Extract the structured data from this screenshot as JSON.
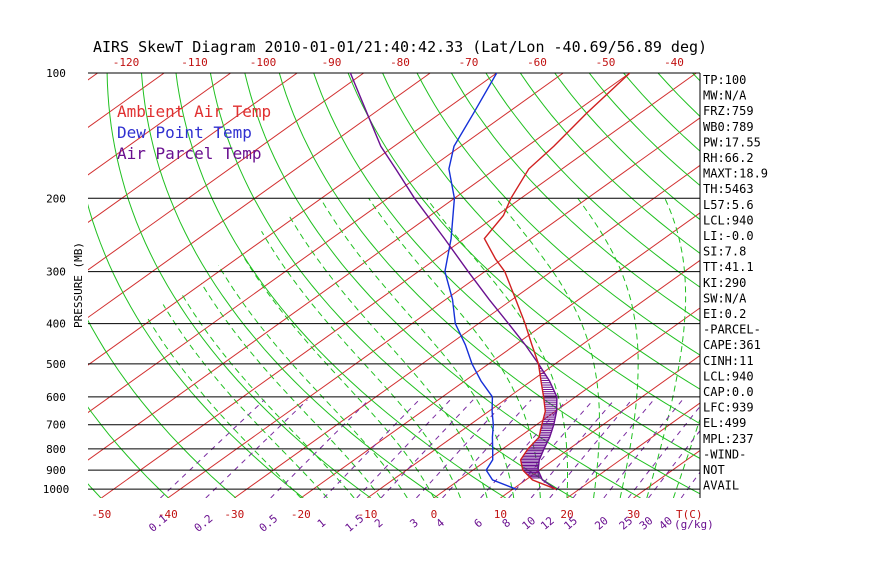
{
  "chart_data": {
    "type": "line",
    "title": "AIRS SkewT Diagram 2010-01-01/21:40:42.33 (Lat/Lon -40.69/56.89 deg)",
    "ylabel": "PRESSURE (MB)",
    "xlabel_top": "",
    "xlabel_bottom_temp_unit": "T(C)",
    "xlabel_bottom_mix_unit": "(g/kg)",
    "ylim": [
      1050,
      100
    ],
    "xlim": [
      -52,
      40
    ],
    "pressure_ticks": [
      100,
      200,
      300,
      400,
      500,
      600,
      700,
      800,
      900,
      1000
    ],
    "top_temp_ticks": [
      -120,
      -110,
      -100,
      -90,
      -80,
      -70,
      -60,
      -50,
      -40
    ],
    "bottom_temp_ticks": [
      -50,
      -40,
      -30,
      -20,
      -10,
      0,
      10,
      20,
      30
    ],
    "mixing_ratio_labels": [
      "0.1",
      "0.2",
      "0.5",
      "1",
      "1.5",
      "2",
      "3",
      "4",
      "6",
      "8",
      "10",
      "12",
      "15",
      "20",
      "25",
      "30",
      "40"
    ],
    "legend": [
      {
        "label": "Ambient Air Temp",
        "color": "#e03030"
      },
      {
        "label": "Dew Point Temp",
        "color": "#3030d0"
      },
      {
        "label": "Air Parcel Temp",
        "color": "#6a1090"
      }
    ],
    "series": [
      {
        "name": "Ambient Air Temp",
        "color": "#d02020",
        "points": [
          {
            "p": 1000,
            "t": 16.5
          },
          {
            "p": 950,
            "t": 11
          },
          {
            "p": 900,
            "t": 7.5
          },
          {
            "p": 850,
            "t": 5
          },
          {
            "p": 800,
            "t": 3.8
          },
          {
            "p": 750,
            "t": 3
          },
          {
            "p": 700,
            "t": 0.8
          },
          {
            "p": 650,
            "t": -1.5
          },
          {
            "p": 600,
            "t": -4.8
          },
          {
            "p": 550,
            "t": -8.5
          },
          {
            "p": 500,
            "t": -12.5
          },
          {
            "p": 450,
            "t": -17.5
          },
          {
            "p": 400,
            "t": -23
          },
          {
            "p": 350,
            "t": -29.5
          },
          {
            "p": 300,
            "t": -37
          },
          {
            "p": 280,
            "t": -41
          },
          {
            "p": 250,
            "t": -47
          },
          {
            "p": 220,
            "t": -49
          },
          {
            "p": 200,
            "t": -51.5
          },
          {
            "p": 170,
            "t": -55
          },
          {
            "p": 150,
            "t": -56
          },
          {
            "p": 125,
            "t": -58
          },
          {
            "p": 100,
            "t": -60
          }
        ]
      },
      {
        "name": "Dew Point Temp",
        "color": "#1530d8",
        "points": [
          {
            "p": 1000,
            "t": 10.5
          },
          {
            "p": 950,
            "t": 5
          },
          {
            "p": 900,
            "t": 2
          },
          {
            "p": 850,
            "t": 0.8
          },
          {
            "p": 800,
            "t": -1.5
          },
          {
            "p": 750,
            "t": -4
          },
          {
            "p": 700,
            "t": -6.5
          },
          {
            "p": 650,
            "t": -9.5
          },
          {
            "p": 600,
            "t": -12.5
          },
          {
            "p": 550,
            "t": -17.5
          },
          {
            "p": 500,
            "t": -22.5
          },
          {
            "p": 450,
            "t": -27.5
          },
          {
            "p": 400,
            "t": -33.5
          },
          {
            "p": 350,
            "t": -39
          },
          {
            "p": 300,
            "t": -46
          },
          {
            "p": 250,
            "t": -52
          },
          {
            "p": 200,
            "t": -60
          },
          {
            "p": 170,
            "t": -67
          },
          {
            "p": 150,
            "t": -71
          },
          {
            "p": 125,
            "t": -75
          },
          {
            "p": 100,
            "t": -80
          }
        ]
      },
      {
        "name": "Air Parcel Temp",
        "color": "#6a1090",
        "points": [
          {
            "p": 1000,
            "t": 16.5
          },
          {
            "p": 950,
            "t": 12.5
          },
          {
            "p": 900,
            "t": 9.8
          },
          {
            "p": 850,
            "t": 7.8
          },
          {
            "p": 800,
            "t": 6.2
          },
          {
            "p": 750,
            "t": 4.6
          },
          {
            "p": 700,
            "t": 2.6
          },
          {
            "p": 650,
            "t": 0.2
          },
          {
            "p": 600,
            "t": -2.8
          },
          {
            "p": 550,
            "t": -7.2
          },
          {
            "p": 500,
            "t": -12.5
          },
          {
            "p": 450,
            "t": -18.5
          },
          {
            "p": 400,
            "t": -25.5
          },
          {
            "p": 350,
            "t": -33.5
          },
          {
            "p": 300,
            "t": -42.5
          },
          {
            "p": 250,
            "t": -53
          },
          {
            "p": 200,
            "t": -66
          },
          {
            "p": 170,
            "t": -75
          },
          {
            "p": 150,
            "t": -82
          },
          {
            "p": 125,
            "t": -91
          },
          {
            "p": 100,
            "t": -102
          }
        ]
      }
    ],
    "cape_region": {
      "from_p": 940,
      "to_p": 499,
      "color": "#6a1090"
    },
    "index_panel": [
      "TP:100",
      "MW:N/A",
      "FRZ:759",
      "WB0:789",
      "PW:17.55",
      "RH:66.2",
      "MAXT:18.9",
      "TH:5463",
      "L57:5.6",
      "LCL:940",
      "LI:-0.0",
      "SI:7.8",
      "TT:41.1",
      "KI:290",
      "SW:N/A",
      "EI:0.2",
      "-PARCEL-",
      "CAPE:361",
      "CINH:11",
      "LCL:940",
      "CAP:0.0",
      "LFC:939",
      "EL:499",
      "MPL:237",
      "-WIND-",
      "NOT",
      "AVAIL"
    ],
    "grid": true
  }
}
